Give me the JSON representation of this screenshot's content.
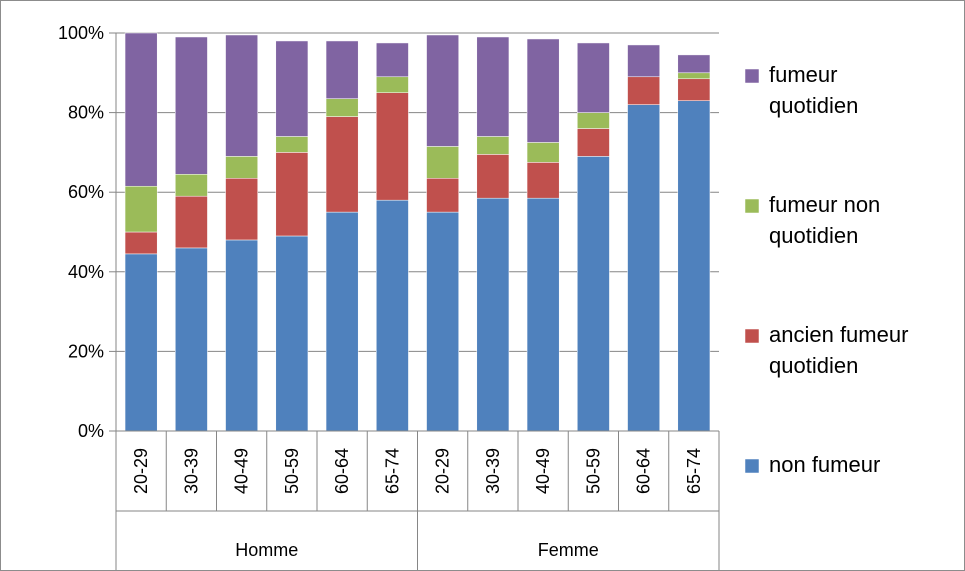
{
  "chart_data": {
    "type": "bar",
    "stacked": true,
    "categories": [
      "20-29",
      "30-39",
      "40-49",
      "50-59",
      "60-64",
      "65-74",
      "20-29",
      "30-39",
      "40-49",
      "50-59",
      "60-64",
      "65-74"
    ],
    "groups": [
      {
        "label": "Homme",
        "count": 6
      },
      {
        "label": "Femme",
        "count": 6
      }
    ],
    "series": [
      {
        "name": "non fumeur",
        "color": "#4f81bd",
        "values": [
          44.5,
          46,
          48,
          49,
          55,
          58,
          55,
          58.5,
          58.5,
          69,
          82,
          83
        ]
      },
      {
        "name": "ancien fumeur quotidien",
        "color": "#c0504d",
        "values": [
          5.5,
          13,
          15.5,
          21,
          24,
          27,
          8.5,
          11,
          9,
          7,
          7,
          5.5
        ]
      },
      {
        "name": "fumeur non quotidien",
        "color": "#9bbb59",
        "values": [
          11.5,
          5.5,
          5.5,
          4,
          4.5,
          4,
          8,
          4.5,
          5,
          4,
          0,
          1.5
        ]
      },
      {
        "name": "fumeur quotidien",
        "color": "#8064a2",
        "values": [
          38.5,
          34.5,
          30.5,
          24,
          14.5,
          8.5,
          28,
          25,
          26,
          17.5,
          8,
          4.5
        ]
      }
    ],
    "yticks": [
      "0%",
      "20%",
      "40%",
      "60%",
      "80%",
      "100%"
    ],
    "ylim": [
      0,
      100
    ],
    "grid": true,
    "legend_position": "right",
    "legend": [
      {
        "series": 3,
        "lines": [
          "fumeur",
          "quotidien"
        ]
      },
      {
        "series": 2,
        "lines": [
          "fumeur non",
          "quotidien"
        ]
      },
      {
        "series": 1,
        "lines": [
          "ancien fumeur",
          "quotidien"
        ]
      },
      {
        "series": 0,
        "lines": [
          "non fumeur"
        ]
      }
    ]
  }
}
